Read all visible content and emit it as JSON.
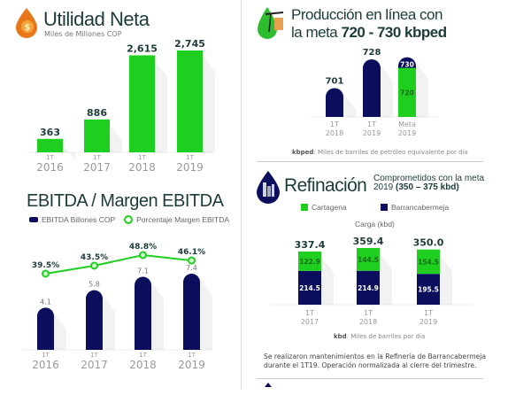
{
  "colors": {
    "green": "#1fcf1f",
    "navy": "#0b0e5c",
    "text": "#1d3b3b",
    "axis_label": "#9a9a9a"
  },
  "utilidad": {
    "title": "Utilidad Neta",
    "subtitle": "Miles de Millones COP",
    "icon": "oil-drop-dollar-icon"
  },
  "ebitda": {
    "title": "EBITDA / Margen EBITDA",
    "legend_bar": "EBITDA Billones COP",
    "legend_line": "Porcentaje Margen EBITDA"
  },
  "produccion": {
    "title_line1": "Producción en línea con",
    "title_line2_prefix": "la meta ",
    "title_line2_bold": "720 - 730 kbped",
    "footnote_bold": "kbped",
    "footnote": ": Miles de barriles de petróleo equivalente por día",
    "icon": "oil-pump-drop-icon"
  },
  "refinacion": {
    "title": "Refinación",
    "subtitle_line1": "Comprometidos con la meta",
    "subtitle_line2_prefix": "2019 ",
    "subtitle_line2_bold": "(350 – 375 kbd)",
    "legend_green": "Cartagena",
    "legend_navy": "Barrancabermeja",
    "chart_label": "Carga (kbd)",
    "footnote_bold": "kbd",
    "footnote": ": Miles de barriles por día",
    "description_line1": "Se realizaron mantenimientos en la Refinería de Barrancabermeja",
    "description_line2": "durante el 1T19. Operación normalizada al cierre del trimestre.",
    "icon": "refinery-drop-icon"
  },
  "chart_data": [
    {
      "type": "bar",
      "title": "Utilidad Neta",
      "ylabel": "Miles de Millones COP",
      "categories": [
        [
          "1T",
          "2016"
        ],
        [
          "1T",
          "2017"
        ],
        [
          "1T",
          "2018"
        ],
        [
          "1T",
          "2019"
        ]
      ],
      "values": [
        363,
        886,
        2615,
        2745
      ],
      "value_labels": [
        "363",
        "886",
        "2,615",
        "2,745"
      ],
      "color": "#1fcf1f"
    },
    {
      "type": "bar+line",
      "title": "EBITDA / Margen EBITDA",
      "categories": [
        [
          "1T",
          "2016"
        ],
        [
          "1T",
          "2017"
        ],
        [
          "1T",
          "2018"
        ],
        [
          "1T",
          "2019"
        ]
      ],
      "series": [
        {
          "name": "EBITDA Billones COP",
          "type": "bar",
          "values": [
            4.1,
            5.8,
            7.1,
            7.4
          ],
          "labels": [
            "4.1",
            "5.8",
            "7.1",
            "7.4"
          ],
          "color": "#0b0e5c"
        },
        {
          "name": "Porcentaje Margen EBITDA",
          "type": "line",
          "values": [
            39.5,
            43.5,
            48.8,
            46.1
          ],
          "labels": [
            "39.5%",
            "43.5%",
            "48.8%",
            "46.1%"
          ],
          "color": "#1fcf1f"
        }
      ],
      "legend": "top"
    },
    {
      "type": "bar",
      "title": "Producción en línea con la meta 720 - 730 kbped",
      "categories": [
        [
          "1T",
          "2018"
        ],
        [
          "1T",
          "2019"
        ],
        [
          "Meta",
          "2019"
        ]
      ],
      "values": [
        701,
        728,
        730
      ],
      "value_labels": [
        "701",
        "728",
        "730"
      ],
      "target_range": {
        "low": 720,
        "high": 730,
        "low_label": "720"
      },
      "color": "#0b0e5c",
      "target_color": "#1fcf1f"
    },
    {
      "type": "stacked-bar",
      "title": "Carga (kbd)",
      "categories": [
        [
          "1T",
          "2017"
        ],
        [
          "1T",
          "2018"
        ],
        [
          "1T",
          "2019"
        ]
      ],
      "series": [
        {
          "name": "Barrancabermeja",
          "values": [
            214.5,
            214.9,
            195.5
          ],
          "labels": [
            "214.5",
            "214.9",
            "195.5"
          ],
          "color": "#0b0e5c"
        },
        {
          "name": "Cartagena",
          "values": [
            122.9,
            144.5,
            154.5
          ],
          "labels": [
            "122.9",
            "144.5",
            "154.5"
          ],
          "color": "#1fcf1f"
        }
      ],
      "totals": [
        "337.4",
        "359.4",
        "350.0"
      ],
      "legend": "top"
    }
  ]
}
